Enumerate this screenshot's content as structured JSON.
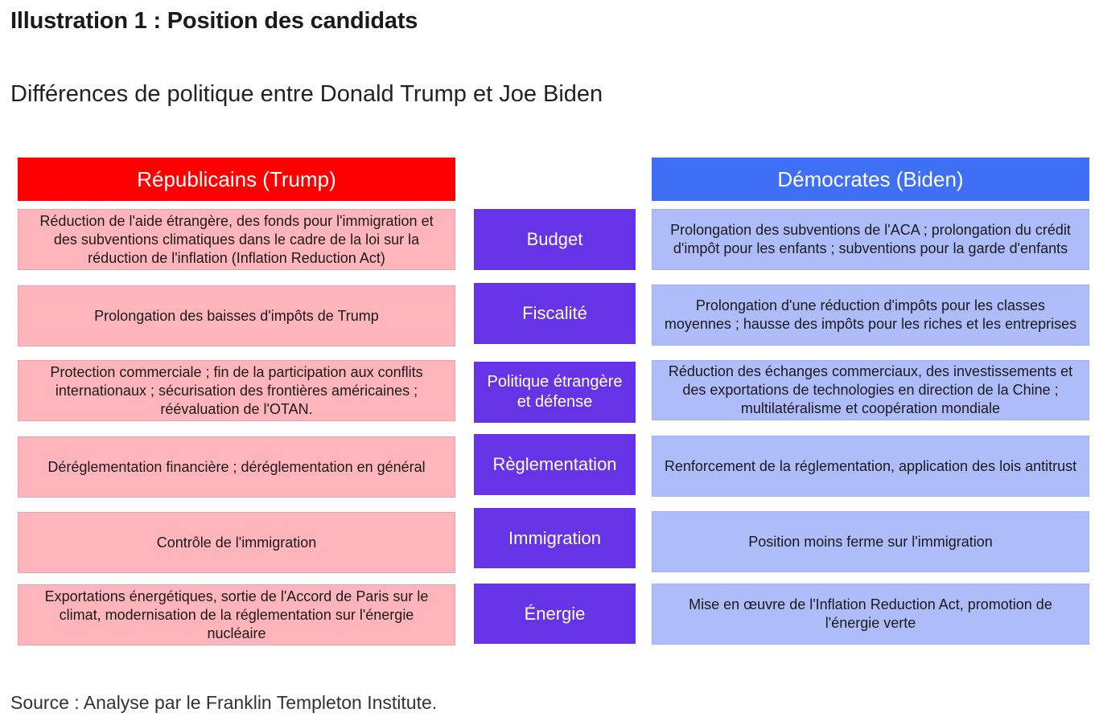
{
  "page": {
    "title": "Illustration 1 : Position des candidats",
    "subtitle": "Différences de politique entre Donald Trump et Joe Biden",
    "source": "Source : Analyse par le Franklin Templeton Institute."
  },
  "headers": {
    "republicans": "Républicains (Trump)",
    "democrats": "Démocrates (Biden)"
  },
  "colors": {
    "republican_header": "#ff0000",
    "republican_cell": "#ffb5bb",
    "democrat_header": "#3f6ff5",
    "democrat_cell": "#aebdfa",
    "category": "#6633e6"
  },
  "rows": [
    {
      "category": "Budget",
      "republican": "Réduction de l'aide étrangère, des fonds pour l'immigration et des subventions climatiques dans le cadre de la loi sur la réduction de l'inflation (Inflation Reduction Act)",
      "democrat": "Prolongation des subventions de l'ACA ; prolongation du crédit d'impôt pour les enfants ; subventions pour la garde d'enfants"
    },
    {
      "category": "Fiscalité",
      "republican": "Prolongation des baisses d'impôts de Trump",
      "democrat": "Prolongation d'une réduction d'impôts pour les classes moyennes ; hausse des impôts pour les riches et les entreprises"
    },
    {
      "category": "Politique étrangère et défense",
      "republican": "Protection commerciale ; fin de la participation aux conflits internationaux ; sécurisation des frontières américaines ; réévaluation de l'OTAN.",
      "democrat": "Réduction des échanges commerciaux, des investissements et des exportations de technologies en direction de la Chine ; multilatéralisme et coopération mondiale"
    },
    {
      "category": "Règlementation",
      "republican": "Déréglementation financière ; déréglementation en général",
      "democrat": "Renforcement de la réglementation, application des lois antitrust"
    },
    {
      "category": "Immigration",
      "republican": "Contrôle de l'immigration",
      "democrat": "Position moins ferme sur l'immigration"
    },
    {
      "category": "Énergie",
      "republican": "Exportations énergétiques, sortie de l'Accord de Paris sur le climat, modernisation de la réglementation sur l'énergie nucléaire",
      "democrat": "Mise en œuvre de l'Inflation Reduction Act, promotion de l'énergie verte"
    }
  ]
}
